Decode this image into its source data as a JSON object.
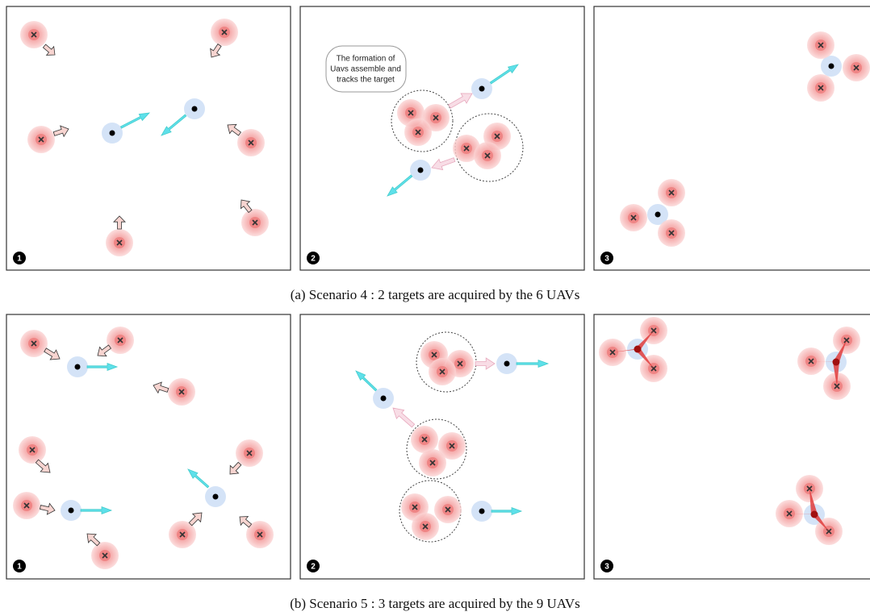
{
  "scenario_a": {
    "panel_labels": [
      "1",
      "2",
      "3"
    ],
    "callout": [
      "The formation of",
      "Uavs assemble and",
      "tracks the target"
    ],
    "caption": "(a) Scenario 4 : 2 targets are acquired by the 6 UAVs"
  },
  "scenario_b": {
    "panel_labels": [
      "1",
      "2",
      "3"
    ],
    "caption": "(b) Scenario 5 : 3 targets are acquired by the 9 UAVs"
  }
}
